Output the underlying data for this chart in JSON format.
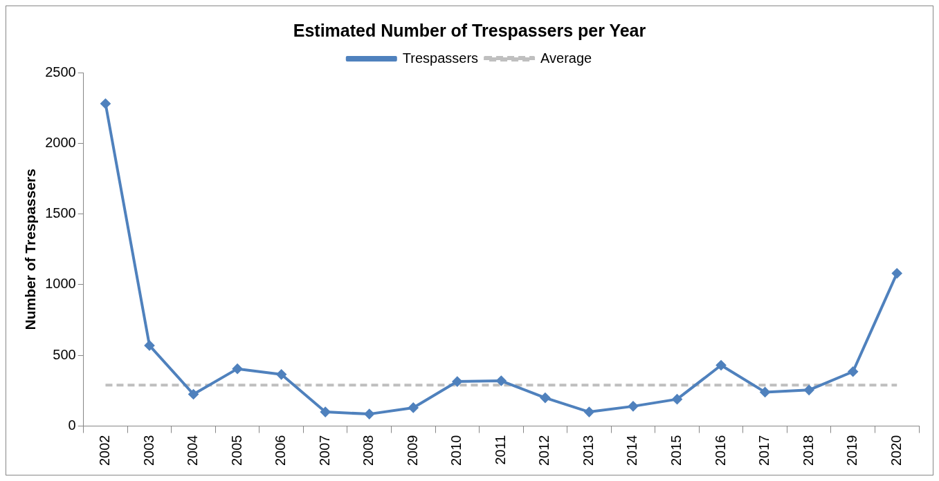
{
  "chart_data": {
    "type": "line",
    "title": "Estimated Number of Trespassers per Year",
    "ylabel": "Number of Trespassers",
    "categories": [
      "2002",
      "2003",
      "2004",
      "2005",
      "2006",
      "2007",
      "2008",
      "2009",
      "2010",
      "2011",
      "2012",
      "2013",
      "2014",
      "2015",
      "2016",
      "2017",
      "2018",
      "2019",
      "2020"
    ],
    "series": [
      {
        "name": "Trespassers",
        "color": "#4f81bd",
        "marker": "diamond",
        "line_style": "solid",
        "values": [
          2280,
          570,
          225,
          405,
          365,
          100,
          85,
          130,
          315,
          320,
          200,
          100,
          140,
          190,
          430,
          240,
          255,
          385,
          1080
        ]
      },
      {
        "name": "Average",
        "color": "#bfbfbf",
        "marker": "none",
        "line_style": "dashed",
        "values": [
          290,
          290,
          290,
          290,
          290,
          290,
          290,
          290,
          290,
          290,
          290,
          290,
          290,
          290,
          290,
          290,
          290,
          290,
          290
        ]
      }
    ],
    "ylim": [
      0,
      2500
    ],
    "yticks": [
      0,
      500,
      1000,
      1500,
      2000,
      2500
    ],
    "grid": false,
    "legend": "top"
  }
}
